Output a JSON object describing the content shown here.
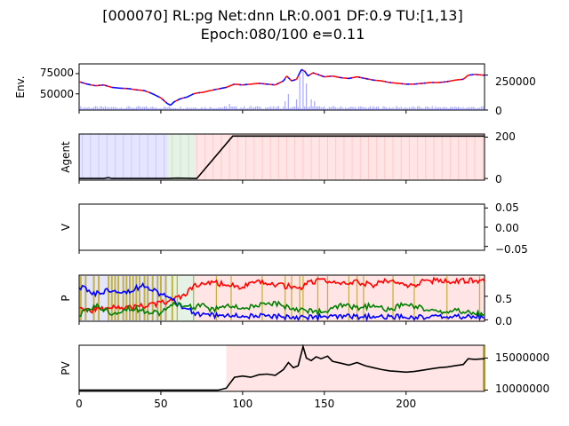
{
  "chart_data": {
    "type": "line",
    "title_line1": "[000070] RL:pg Net:dnn LR:0.001 DF:0.9 TU:[1,13]",
    "title_line2": "Epoch:080/100 e=0.11",
    "x_ticks": [
      "0",
      "50",
      "100",
      "150",
      "200"
    ],
    "xlim": [
      0,
      248
    ],
    "colors": {
      "buy": "#ff0000",
      "sell": "#0000ff",
      "hold": "#008000",
      "value": "#000000",
      "volume": "#0000ff",
      "exploration": "#b5a000"
    },
    "panels": [
      {
        "ylabel": "Env.",
        "left_ticks": [
          "50000",
          "75000"
        ],
        "right_ticks": [
          "0",
          "250000"
        ],
        "ylim": [
          30000,
          87000
        ],
        "price_points": [
          [
            0,
            65000
          ],
          [
            5,
            62000
          ],
          [
            10,
            60000
          ],
          [
            15,
            61000
          ],
          [
            20,
            58000
          ],
          [
            25,
            57000
          ],
          [
            30,
            56500
          ],
          [
            35,
            55000
          ],
          [
            40,
            54000
          ],
          [
            45,
            50000
          ],
          [
            50,
            45000
          ],
          [
            54,
            38000
          ],
          [
            56,
            36000
          ],
          [
            58,
            40000
          ],
          [
            62,
            44000
          ],
          [
            66,
            46000
          ],
          [
            70,
            50000
          ],
          [
            72,
            51000
          ],
          [
            76,
            52000
          ],
          [
            80,
            54000
          ],
          [
            85,
            56000
          ],
          [
            90,
            58000
          ],
          [
            95,
            62000
          ],
          [
            100,
            61000
          ],
          [
            105,
            62000
          ],
          [
            110,
            63000
          ],
          [
            115,
            62000
          ],
          [
            120,
            61000
          ],
          [
            125,
            66000
          ],
          [
            127,
            72000
          ],
          [
            130,
            66000
          ],
          [
            133,
            68000
          ],
          [
            136,
            80000
          ],
          [
            138,
            78000
          ],
          [
            140,
            72000
          ],
          [
            143,
            76000
          ],
          [
            146,
            74000
          ],
          [
            150,
            71000
          ],
          [
            155,
            72000
          ],
          [
            160,
            70000
          ],
          [
            165,
            69000
          ],
          [
            170,
            71000
          ],
          [
            175,
            69000
          ],
          [
            180,
            67000
          ],
          [
            185,
            66000
          ],
          [
            190,
            64000
          ],
          [
            195,
            63000
          ],
          [
            200,
            62000
          ],
          [
            205,
            62000
          ],
          [
            210,
            63000
          ],
          [
            215,
            64000
          ],
          [
            220,
            64000
          ],
          [
            225,
            65000
          ],
          [
            230,
            67000
          ],
          [
            235,
            68000
          ],
          [
            238,
            73000
          ],
          [
            242,
            74000
          ],
          [
            248,
            73000
          ]
        ]
      },
      {
        "ylabel": "Agent",
        "right_ticks": [
          "0",
          "200"
        ],
        "ylim": [
          -8,
          215
        ],
        "holdings_points": [
          [
            0,
            0
          ],
          [
            15,
            0
          ],
          [
            18,
            4
          ],
          [
            20,
            0
          ],
          [
            55,
            0
          ],
          [
            60,
            2
          ],
          [
            70,
            0
          ],
          [
            72,
            0
          ],
          [
            94,
            205
          ],
          [
            248,
            205
          ]
        ]
      },
      {
        "ylabel": "V",
        "right_ticks": [
          "−0.05",
          "0.00",
          "0.05"
        ],
        "ylim": [
          -0.06,
          0.06
        ]
      },
      {
        "ylabel": "P",
        "right_ticks": [
          "0.0",
          "0.5"
        ],
        "ylim": [
          -0.03,
          0.95
        ],
        "series": [
          {
            "key": "buy",
            "points": [
              [
                0,
                0.25
              ],
              [
                10,
                0.2
              ],
              [
                20,
                0.3
              ],
              [
                30,
                0.25
              ],
              [
                40,
                0.3
              ],
              [
                50,
                0.35
              ],
              [
                60,
                0.45
              ],
              [
                65,
                0.55
              ],
              [
                70,
                0.7
              ],
              [
                75,
                0.75
              ],
              [
                80,
                0.8
              ],
              [
                90,
                0.75
              ],
              [
                100,
                0.7
              ],
              [
                110,
                0.8
              ],
              [
                120,
                0.75
              ],
              [
                130,
                0.7
              ],
              [
                135,
                0.65
              ],
              [
                140,
                0.8
              ],
              [
                150,
                0.85
              ],
              [
                160,
                0.75
              ],
              [
                170,
                0.8
              ],
              [
                180,
                0.75
              ],
              [
                190,
                0.85
              ],
              [
                200,
                0.7
              ],
              [
                210,
                0.8
              ],
              [
                220,
                0.85
              ],
              [
                230,
                0.8
              ],
              [
                240,
                0.85
              ],
              [
                248,
                0.82
              ]
            ]
          },
          {
            "key": "sell",
            "points": [
              [
                0,
                0.7
              ],
              [
                10,
                0.55
              ],
              [
                20,
                0.65
              ],
              [
                30,
                0.6
              ],
              [
                40,
                0.75
              ],
              [
                50,
                0.55
              ],
              [
                55,
                0.45
              ],
              [
                60,
                0.35
              ],
              [
                65,
                0.25
              ],
              [
                70,
                0.15
              ],
              [
                75,
                0.12
              ],
              [
                80,
                0.1
              ],
              [
                100,
                0.08
              ],
              [
                120,
                0.07
              ],
              [
                140,
                0.06
              ],
              [
                160,
                0.06
              ],
              [
                200,
                0.06
              ],
              [
                248,
                0.07
              ]
            ]
          },
          {
            "key": "hold",
            "points": [
              [
                0,
                0.1
              ],
              [
                10,
                0.3
              ],
              [
                20,
                0.15
              ],
              [
                30,
                0.25
              ],
              [
                40,
                0.2
              ],
              [
                50,
                0.15
              ],
              [
                60,
                0.35
              ],
              [
                65,
                0.3
              ],
              [
                70,
                0.25
              ],
              [
                75,
                0.35
              ],
              [
                80,
                0.2
              ],
              [
                90,
                0.3
              ],
              [
                100,
                0.25
              ],
              [
                110,
                0.3
              ],
              [
                120,
                0.35
              ],
              [
                130,
                0.25
              ],
              [
                140,
                0.2
              ],
              [
                150,
                0.15
              ],
              [
                160,
                0.3
              ],
              [
                170,
                0.25
              ],
              [
                180,
                0.3
              ],
              [
                190,
                0.2
              ],
              [
                200,
                0.35
              ],
              [
                210,
                0.25
              ],
              [
                220,
                0.15
              ],
              [
                230,
                0.2
              ],
              [
                240,
                0.15
              ],
              [
                248,
                0.12
              ]
            ]
          }
        ]
      },
      {
        "ylabel": "PV",
        "right_ticks": [
          "10000000",
          "15000000"
        ],
        "ylim": [
          9800000,
          17000000
        ],
        "value_points": [
          [
            0,
            10000000
          ],
          [
            85,
            10000000
          ],
          [
            90,
            10300000
          ],
          [
            95,
            12000000
          ],
          [
            100,
            12200000
          ],
          [
            105,
            12000000
          ],
          [
            110,
            12400000
          ],
          [
            115,
            12500000
          ],
          [
            120,
            12300000
          ],
          [
            125,
            13200000
          ],
          [
            128,
            14300000
          ],
          [
            131,
            13500000
          ],
          [
            134,
            13800000
          ],
          [
            137,
            16800000
          ],
          [
            139,
            15000000
          ],
          [
            142,
            14600000
          ],
          [
            145,
            15200000
          ],
          [
            148,
            14900000
          ],
          [
            152,
            15300000
          ],
          [
            155,
            14500000
          ],
          [
            160,
            14200000
          ],
          [
            165,
            13900000
          ],
          [
            170,
            14300000
          ],
          [
            175,
            13800000
          ],
          [
            180,
            13500000
          ],
          [
            185,
            13200000
          ],
          [
            190,
            13000000
          ],
          [
            195,
            12900000
          ],
          [
            200,
            12800000
          ],
          [
            205,
            12900000
          ],
          [
            210,
            13100000
          ],
          [
            215,
            13300000
          ],
          [
            220,
            13500000
          ],
          [
            225,
            13600000
          ],
          [
            230,
            13800000
          ],
          [
            235,
            14000000
          ],
          [
            238,
            14900000
          ],
          [
            242,
            14800000
          ],
          [
            248,
            14900000
          ]
        ]
      }
    ]
  }
}
